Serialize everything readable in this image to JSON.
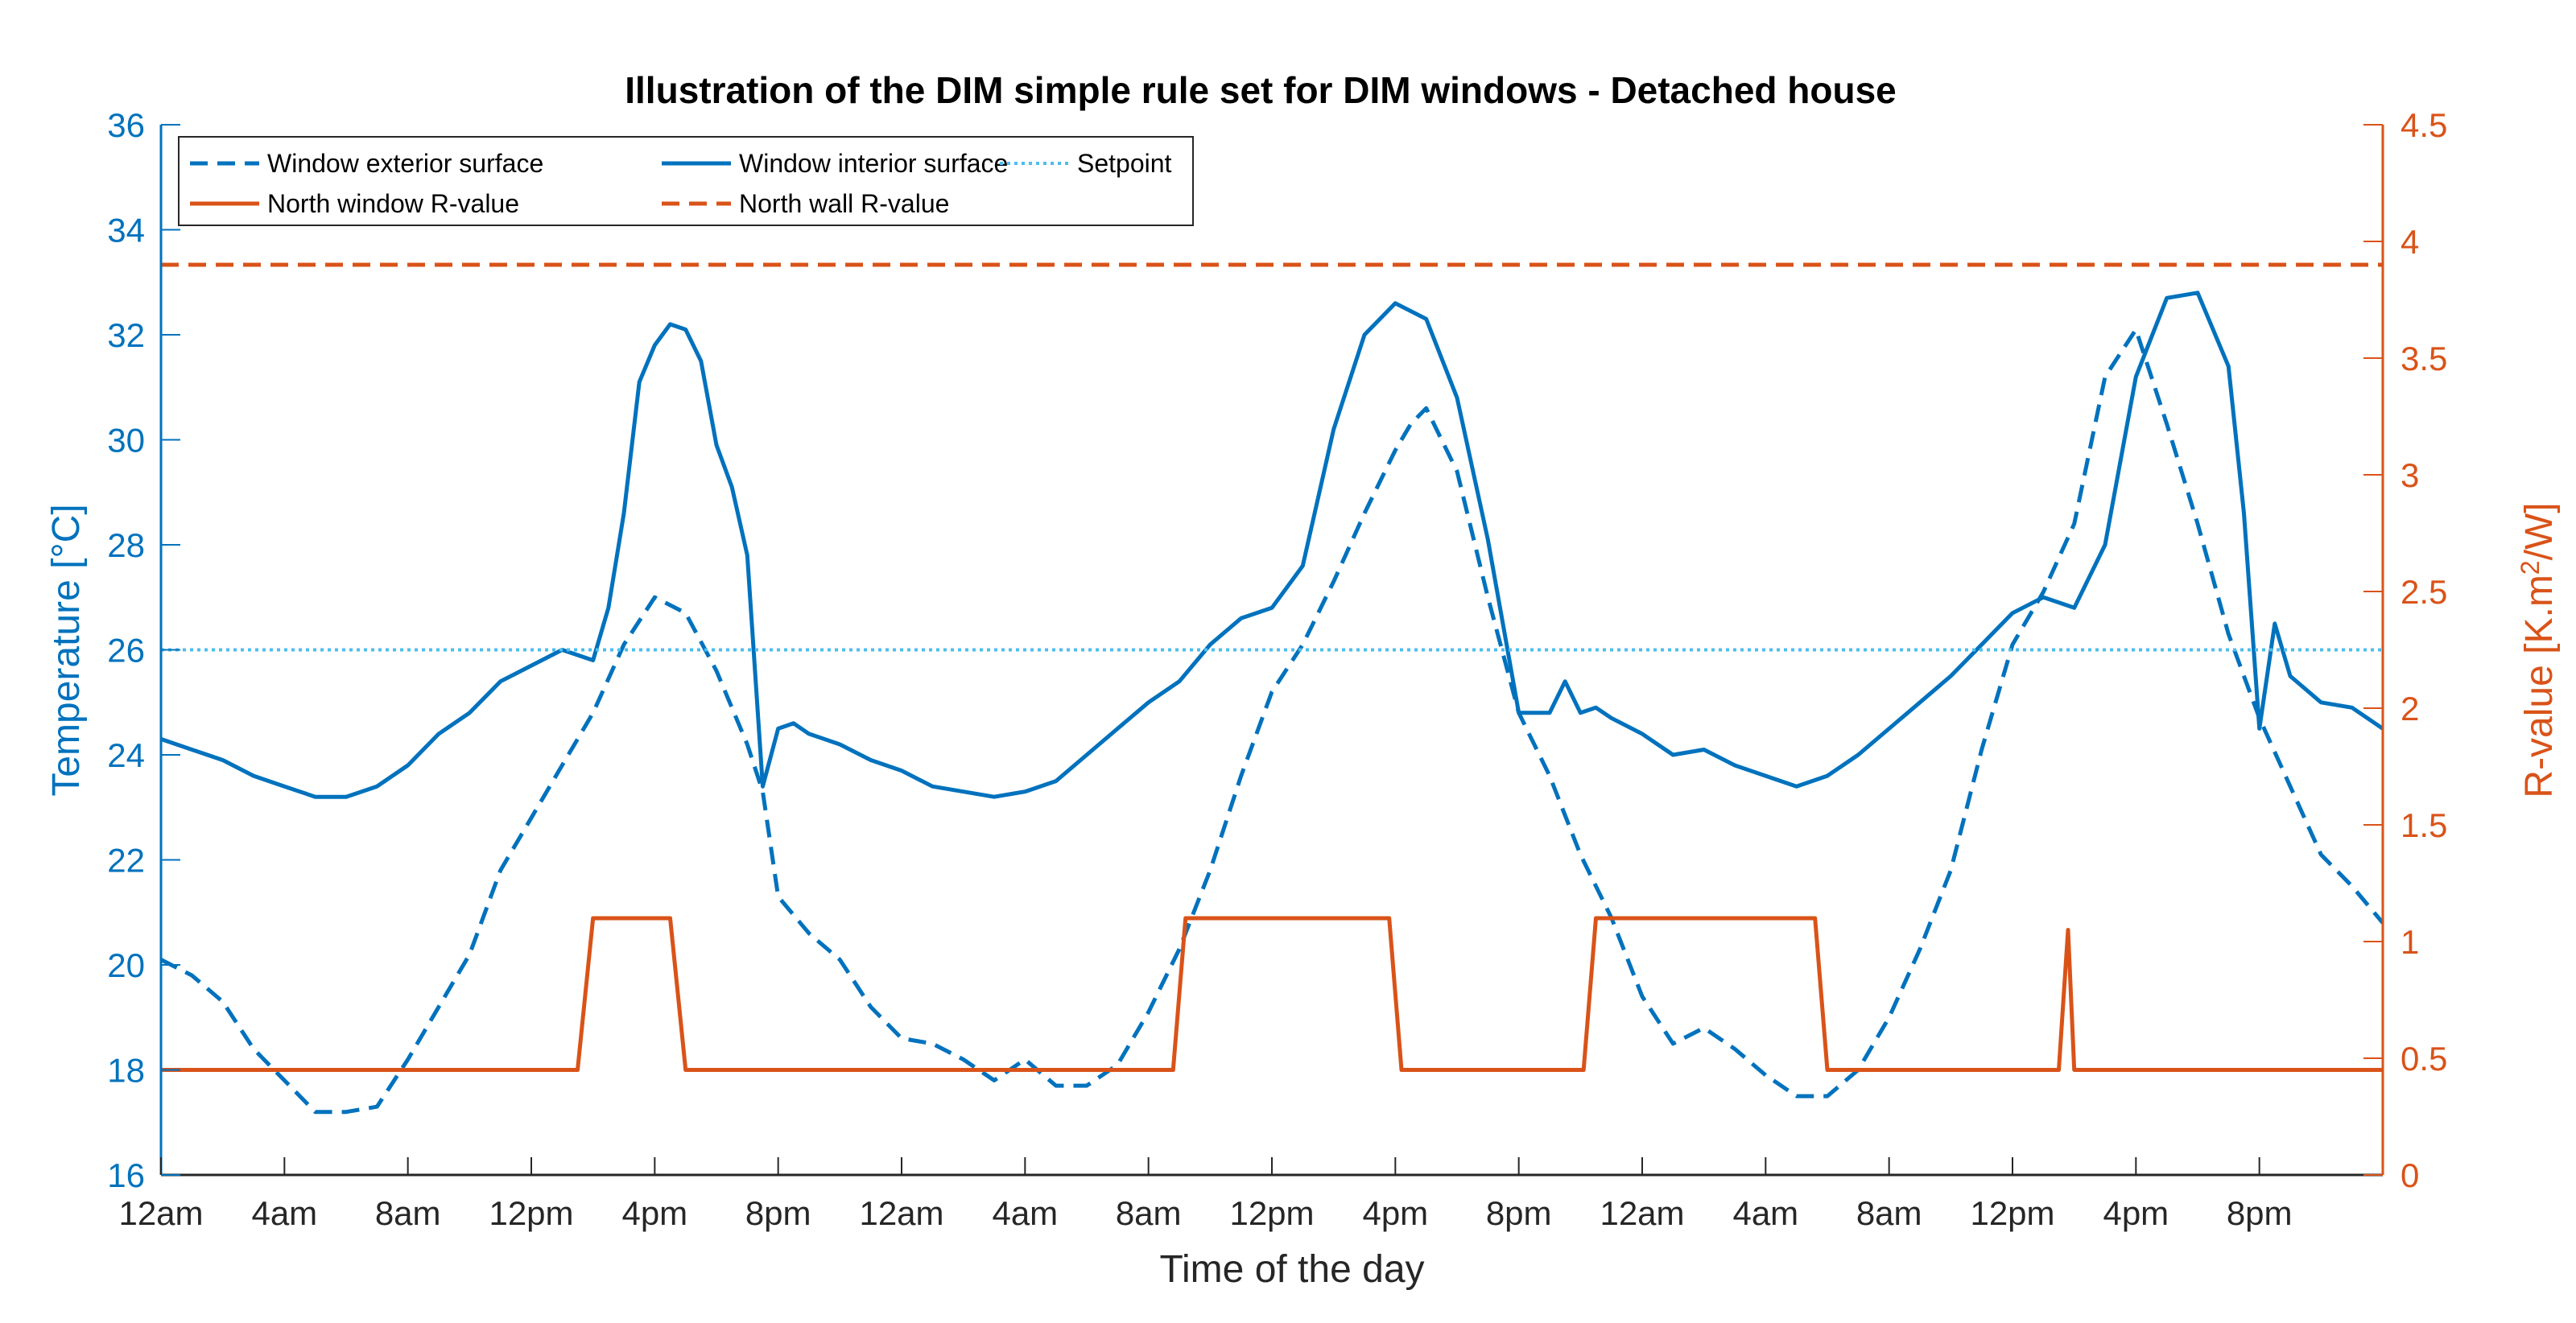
{
  "chart_data": {
    "type": "line",
    "title": "Illustration of the DIM simple rule set for DIM windows - Detached house",
    "xlabel": "Time of the day",
    "ylabel_left": "Temperature [°C]",
    "ylabel_right_parts": [
      "R-value [K.m",
      "2",
      "/W]"
    ],
    "x_unit": "hours from start",
    "xlim": [
      0,
      72
    ],
    "x_ticks": [
      0,
      4,
      8,
      12,
      16,
      20,
      24,
      28,
      32,
      36,
      40,
      44,
      48,
      52,
      56,
      60,
      64,
      68
    ],
    "x_tick_labels": [
      "12am",
      "4am",
      "8am",
      "12pm",
      "4pm",
      "8pm",
      "12am",
      "4am",
      "8am",
      "12pm",
      "4pm",
      "8pm",
      "12am",
      "4am",
      "8am",
      "12pm",
      "4pm",
      "8pm"
    ],
    "y_left_lim": [
      16,
      36
    ],
    "y_left_ticks": [
      16,
      18,
      20,
      22,
      24,
      26,
      28,
      30,
      32,
      34,
      36
    ],
    "y_right_lim": [
      0,
      4.5
    ],
    "y_right_ticks": [
      0,
      0.5,
      1,
      1.5,
      2,
      2.5,
      3,
      3.5,
      4,
      4.5
    ],
    "y_right_tick_labels": [
      "0",
      "0.5",
      "1",
      "1.5",
      "2",
      "2.5",
      "3",
      "3.5",
      "4",
      "4.5"
    ],
    "legend_position": "top-left",
    "series": [
      {
        "name": "Window exterior surface",
        "axis": "left",
        "color": "#0072BD",
        "style": "dashed",
        "x": [
          0,
          1,
          2,
          3,
          4,
          5,
          6,
          7,
          8,
          9,
          10,
          11,
          12,
          13,
          14,
          15,
          16,
          17,
          18,
          19,
          19.5,
          20,
          21,
          22,
          23,
          24,
          25,
          26,
          27,
          28,
          29,
          30,
          31,
          32,
          33,
          34,
          35,
          36,
          37,
          38,
          39,
          40,
          40.5,
          41,
          42,
          43,
          44,
          45,
          46,
          47,
          48,
          49,
          50,
          51,
          52,
          53,
          54,
          55,
          56,
          57,
          58,
          59,
          60,
          61,
          62,
          63,
          64,
          65,
          66,
          67,
          68,
          69,
          70,
          71,
          72
        ],
        "y": [
          20.1,
          19.8,
          19.3,
          18.4,
          17.8,
          17.2,
          17.2,
          17.3,
          18.2,
          19.2,
          20.2,
          21.8,
          22.8,
          23.8,
          24.8,
          26.1,
          27.0,
          26.7,
          25.6,
          24.2,
          23.3,
          21.3,
          20.6,
          20.1,
          19.2,
          18.6,
          18.5,
          18.2,
          17.8,
          18.2,
          17.7,
          17.7,
          18.1,
          19.1,
          20.3,
          21.8,
          23.6,
          25.2,
          26.1,
          27.3,
          28.6,
          29.8,
          30.3,
          30.6,
          29.4,
          27.0,
          24.8,
          23.6,
          22.1,
          20.9,
          19.4,
          18.5,
          18.8,
          18.4,
          17.9,
          17.5,
          17.5,
          18.0,
          19.0,
          20.3,
          21.8,
          24.1,
          26.1,
          27.1,
          28.4,
          31.2,
          32.1,
          30.3,
          28.4,
          26.3,
          24.7,
          23.4,
          22.1,
          21.5,
          20.8
        ]
      },
      {
        "name": "Window interior surface",
        "axis": "left",
        "color": "#0072BD",
        "style": "solid",
        "x": [
          0,
          1,
          2,
          3,
          4,
          5,
          6,
          7,
          8,
          9,
          10,
          11,
          12,
          13,
          14,
          14.5,
          15,
          15.5,
          16,
          16.5,
          17,
          17.5,
          18,
          18.5,
          19,
          19.5,
          20,
          20.5,
          21,
          22,
          23,
          24,
          25,
          26,
          27,
          28,
          29,
          30,
          31,
          32,
          33,
          34,
          35,
          36,
          37,
          38,
          39,
          40,
          41,
          42,
          43,
          44,
          45,
          45.5,
          46,
          46.5,
          47,
          48,
          49,
          50,
          51,
          52,
          53,
          54,
          55,
          56,
          57,
          58,
          59,
          60,
          61,
          62,
          63,
          64,
          65,
          66,
          67,
          67.5,
          68,
          68.5,
          69,
          70,
          71,
          72
        ],
        "y": [
          24.3,
          24.1,
          23.9,
          23.6,
          23.4,
          23.2,
          23.2,
          23.4,
          23.8,
          24.4,
          24.8,
          25.4,
          25.7,
          26.0,
          25.8,
          26.8,
          28.6,
          31.1,
          31.8,
          32.2,
          32.1,
          31.5,
          29.9,
          29.1,
          27.8,
          23.4,
          24.5,
          24.6,
          24.4,
          24.2,
          23.9,
          23.7,
          23.4,
          23.3,
          23.2,
          23.3,
          23.5,
          24.0,
          24.5,
          25.0,
          25.4,
          26.1,
          26.6,
          26.8,
          27.6,
          30.2,
          32.0,
          32.6,
          32.3,
          30.8,
          28.1,
          24.8,
          24.8,
          25.4,
          24.8,
          24.9,
          24.7,
          24.4,
          24.0,
          24.1,
          23.8,
          23.6,
          23.4,
          23.6,
          24.0,
          24.5,
          25.0,
          25.5,
          26.1,
          26.7,
          27.0,
          26.8,
          28.0,
          31.2,
          32.7,
          32.8,
          31.4,
          28.6,
          24.5,
          26.5,
          25.5,
          25.0,
          24.9,
          24.5
        ]
      },
      {
        "name": "Setpoint",
        "axis": "left",
        "color": "#4DBEEE",
        "style": "dotted",
        "x": [
          0,
          72
        ],
        "y": [
          26,
          26
        ]
      },
      {
        "name": "North window R-value",
        "axis": "right",
        "color": "#D95319",
        "style": "solid",
        "x": [
          0,
          13.5,
          14.0,
          16.5,
          17.0,
          32.8,
          33.2,
          39.8,
          40.2,
          46.1,
          46.5,
          53.6,
          54.0,
          61.5,
          61.8,
          62.0,
          62.3,
          72
        ],
        "y": [
          0.45,
          0.45,
          1.1,
          1.1,
          0.45,
          0.45,
          1.1,
          1.1,
          0.45,
          0.45,
          1.1,
          1.1,
          0.45,
          0.45,
          1.05,
          0.45,
          0.45,
          0.45
        ]
      },
      {
        "name": "North wall R-value",
        "axis": "right",
        "color": "#D95319",
        "style": "dashed",
        "x": [
          0,
          72
        ],
        "y": [
          3.9,
          3.9
        ]
      }
    ]
  }
}
